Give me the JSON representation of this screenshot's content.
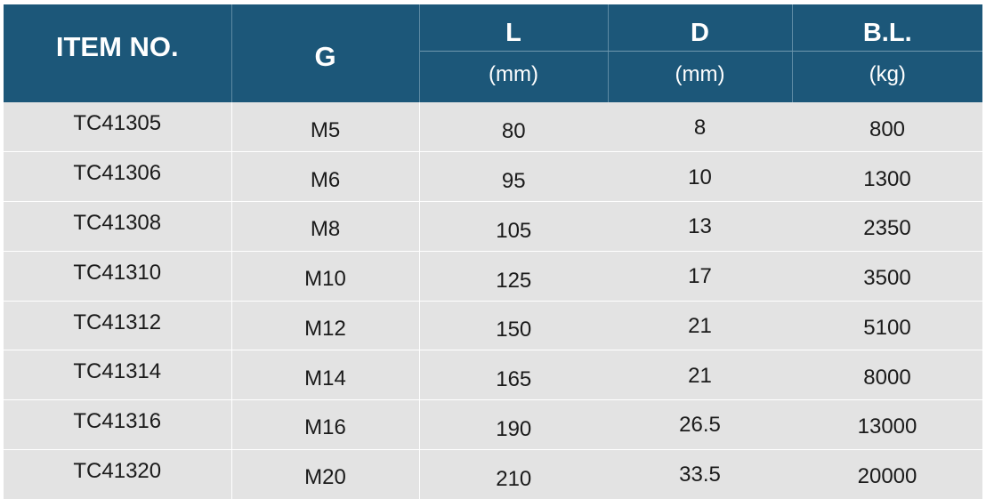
{
  "table": {
    "headers": {
      "item_no": "ITEM NO.",
      "g": "G",
      "l": "L",
      "l_unit": "(mm)",
      "d": "D",
      "d_unit": "(mm)",
      "bl": "B.L.",
      "bl_unit": "(kg)"
    },
    "rows": [
      {
        "item_no": "TC41305",
        "g": "M5",
        "l": "80",
        "d": "8",
        "bl": "800"
      },
      {
        "item_no": "TC41306",
        "g": "M6",
        "l": "95",
        "d": "10",
        "bl": "1300"
      },
      {
        "item_no": "TC41308",
        "g": "M8",
        "l": "105",
        "d": "13",
        "bl": "2350"
      },
      {
        "item_no": "TC41310",
        "g": "M10",
        "l": "125",
        "d": "17",
        "bl": "3500"
      },
      {
        "item_no": "TC41312",
        "g": "M12",
        "l": "150",
        "d": "21",
        "bl": "5100"
      },
      {
        "item_no": "TC41314",
        "g": "M14",
        "l": "165",
        "d": "21",
        "bl": "8000"
      },
      {
        "item_no": "TC41316",
        "g": "M16",
        "l": "190",
        "d": "26.5",
        "bl": "13000"
      },
      {
        "item_no": "TC41320",
        "g": "M20",
        "l": "210",
        "d": "33.5",
        "bl": "20000"
      }
    ]
  },
  "colors": {
    "header_background": "#1c5779",
    "header_text": "#ffffff",
    "body_background": "#e3e3e3",
    "body_text": "#1a1a1a"
  }
}
